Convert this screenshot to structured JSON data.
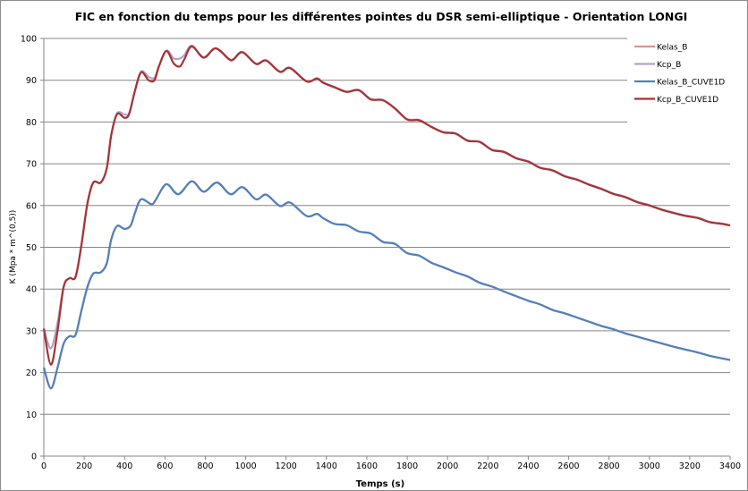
{
  "chart_data": {
    "type": "line",
    "title": "FIC en fonction du temps pour les différentes pointes du DSR semi-elliptique - Orientation LONGI",
    "xlabel": "Temps (s)",
    "ylabel": "K (Mpa * m^(0,5))",
    "xlim": [
      0,
      3400
    ],
    "ylim": [
      0,
      100
    ],
    "xticks": [
      0,
      200,
      400,
      600,
      800,
      1000,
      1200,
      1400,
      1600,
      1800,
      2000,
      2200,
      2400,
      2600,
      2800,
      3000,
      3200,
      3400
    ],
    "yticks": [
      0,
      10,
      20,
      30,
      40,
      50,
      60,
      70,
      80,
      90,
      100
    ],
    "grid": true,
    "legend": "top-right",
    "series": [
      {
        "name": "Kelas_B",
        "color": "#d99594",
        "points": [
          [
            0,
            21.2
          ],
          [
            35,
            16.2
          ],
          [
            68,
            21.2
          ],
          [
            98,
            26.9
          ],
          [
            127,
            28.7
          ],
          [
            157,
            29
          ],
          [
            186,
            34.8
          ],
          [
            216,
            40.5
          ],
          [
            245,
            43.7
          ],
          [
            282,
            44
          ],
          [
            312,
            46.2
          ],
          [
            334,
            51.9
          ],
          [
            363,
            55.1
          ],
          [
            400,
            54.4
          ],
          [
            430,
            55.2
          ],
          [
            452,
            58.3
          ],
          [
            482,
            61.5
          ],
          [
            533,
            60.3
          ],
          [
            555,
            61.4
          ],
          [
            607,
            65.1
          ],
          [
            666,
            62.7
          ],
          [
            733,
            65.8
          ],
          [
            792,
            63.3
          ],
          [
            858,
            65.5
          ],
          [
            925,
            62.7
          ],
          [
            984,
            64.4
          ],
          [
            1051,
            61.5
          ],
          [
            1102,
            62.6
          ],
          [
            1169,
            59.9
          ],
          [
            1220,
            60.7
          ],
          [
            1302,
            57.5
          ],
          [
            1353,
            58
          ],
          [
            1383,
            57
          ],
          [
            1440,
            55.6
          ],
          [
            1500,
            55.3
          ],
          [
            1560,
            53.8
          ],
          [
            1620,
            53.3
          ],
          [
            1680,
            51.3
          ],
          [
            1740,
            50.8
          ],
          [
            1800,
            48.6
          ],
          [
            1860,
            48
          ],
          [
            1920,
            46.3
          ],
          [
            1980,
            45.2
          ],
          [
            2040,
            44
          ],
          [
            2100,
            43
          ],
          [
            2160,
            41.5
          ],
          [
            2220,
            40.6
          ],
          [
            2280,
            39.4
          ],
          [
            2340,
            38.3
          ],
          [
            2400,
            37.2
          ],
          [
            2460,
            36.3
          ],
          [
            2520,
            35
          ],
          [
            2580,
            34.2
          ],
          [
            2640,
            33.2
          ],
          [
            2700,
            32.2
          ],
          [
            2760,
            31.2
          ],
          [
            2820,
            30.4
          ],
          [
            2880,
            29.4
          ],
          [
            2940,
            28.6
          ],
          [
            3000,
            27.8
          ],
          [
            3060,
            27
          ],
          [
            3120,
            26.2
          ],
          [
            3180,
            25.5
          ],
          [
            3240,
            24.8
          ],
          [
            3300,
            24
          ],
          [
            3360,
            23.4
          ],
          [
            3400,
            23
          ]
        ]
      },
      {
        "name": "Kcp_B",
        "color": "#b3a2c7",
        "points": [
          [
            0,
            30.5
          ],
          [
            35,
            25.8
          ],
          [
            68,
            32
          ],
          [
            98,
            40.5
          ],
          [
            127,
            42.6
          ],
          [
            157,
            42.9
          ],
          [
            186,
            50.5
          ],
          [
            216,
            60.5
          ],
          [
            245,
            65.5
          ],
          [
            282,
            65.5
          ],
          [
            312,
            69
          ],
          [
            334,
            76.9
          ],
          [
            363,
            82.1
          ],
          [
            400,
            81.8
          ],
          [
            423,
            82.2
          ],
          [
            452,
            87.6
          ],
          [
            482,
            92.1
          ],
          [
            519,
            90.8
          ],
          [
            548,
            90.6
          ],
          [
            570,
            93.3
          ],
          [
            607,
            97.1
          ],
          [
            644,
            95.2
          ],
          [
            674,
            95.2
          ],
          [
            696,
            96
          ],
          [
            733,
            98.3
          ],
          [
            792,
            95.5
          ],
          [
            851,
            97.7
          ],
          [
            918,
            95.1
          ],
          [
            940,
            95.1
          ],
          [
            984,
            96.8
          ],
          [
            1051,
            94
          ],
          [
            1102,
            94.8
          ],
          [
            1169,
            92.1
          ],
          [
            1220,
            93
          ],
          [
            1302,
            89.8
          ],
          [
            1353,
            90.5
          ],
          [
            1383,
            89.5
          ],
          [
            1440,
            88.4
          ],
          [
            1500,
            87.3
          ],
          [
            1560,
            87.7
          ],
          [
            1620,
            85.5
          ],
          [
            1680,
            85.3
          ],
          [
            1740,
            83.3
          ],
          [
            1800,
            80.7
          ],
          [
            1860,
            80.5
          ],
          [
            1920,
            78.9
          ],
          [
            1980,
            77.6
          ],
          [
            2040,
            77.3
          ],
          [
            2100,
            75.6
          ],
          [
            2160,
            75.3
          ],
          [
            2220,
            73.4
          ],
          [
            2280,
            72.9
          ],
          [
            2340,
            71.4
          ],
          [
            2400,
            70.6
          ],
          [
            2460,
            69.1
          ],
          [
            2520,
            68.5
          ],
          [
            2580,
            67.1
          ],
          [
            2640,
            66.3
          ],
          [
            2700,
            65.1
          ],
          [
            2760,
            64.1
          ],
          [
            2820,
            62.9
          ],
          [
            2880,
            62.1
          ],
          [
            2940,
            60.9
          ],
          [
            3000,
            60.1
          ],
          [
            3060,
            59.1
          ],
          [
            3120,
            58.3
          ],
          [
            3180,
            57.6
          ],
          [
            3240,
            57.1
          ],
          [
            3300,
            56.1
          ],
          [
            3360,
            55.7
          ],
          [
            3400,
            55.3
          ]
        ]
      },
      {
        "name": "Kelas_B_CUVE1D",
        "color": "#4f81bd",
        "points": [
          [
            0,
            21.2
          ],
          [
            35,
            16.2
          ],
          [
            68,
            21.2
          ],
          [
            98,
            26.9
          ],
          [
            127,
            28.7
          ],
          [
            157,
            29
          ],
          [
            186,
            34.8
          ],
          [
            216,
            40.5
          ],
          [
            245,
            43.7
          ],
          [
            282,
            44
          ],
          [
            312,
            46.2
          ],
          [
            334,
            51.9
          ],
          [
            363,
            55.1
          ],
          [
            400,
            54.4
          ],
          [
            430,
            55.2
          ],
          [
            452,
            58.3
          ],
          [
            482,
            61.5
          ],
          [
            533,
            60.3
          ],
          [
            555,
            61.4
          ],
          [
            607,
            65.1
          ],
          [
            666,
            62.7
          ],
          [
            733,
            65.8
          ],
          [
            792,
            63.3
          ],
          [
            858,
            65.5
          ],
          [
            925,
            62.7
          ],
          [
            984,
            64.4
          ],
          [
            1051,
            61.5
          ],
          [
            1102,
            62.6
          ],
          [
            1169,
            59.9
          ],
          [
            1220,
            60.7
          ],
          [
            1302,
            57.5
          ],
          [
            1353,
            58
          ],
          [
            1383,
            57
          ],
          [
            1440,
            55.6
          ],
          [
            1500,
            55.3
          ],
          [
            1560,
            53.8
          ],
          [
            1620,
            53.3
          ],
          [
            1680,
            51.3
          ],
          [
            1740,
            50.8
          ],
          [
            1800,
            48.6
          ],
          [
            1860,
            48
          ],
          [
            1920,
            46.3
          ],
          [
            1980,
            45.2
          ],
          [
            2040,
            44
          ],
          [
            2100,
            43
          ],
          [
            2160,
            41.5
          ],
          [
            2220,
            40.6
          ],
          [
            2280,
            39.4
          ],
          [
            2340,
            38.3
          ],
          [
            2400,
            37.2
          ],
          [
            2460,
            36.3
          ],
          [
            2520,
            35
          ],
          [
            2580,
            34.2
          ],
          [
            2640,
            33.2
          ],
          [
            2700,
            32.2
          ],
          [
            2760,
            31.2
          ],
          [
            2820,
            30.4
          ],
          [
            2880,
            29.4
          ],
          [
            2940,
            28.6
          ],
          [
            3000,
            27.8
          ],
          [
            3060,
            27
          ],
          [
            3120,
            26.2
          ],
          [
            3180,
            25.5
          ],
          [
            3240,
            24.8
          ],
          [
            3300,
            24
          ],
          [
            3360,
            23.4
          ],
          [
            3400,
            23
          ]
        ]
      },
      {
        "name": "Kcp_B_CUVE1D",
        "color": "#a83232",
        "points": [
          [
            0,
            30.5
          ],
          [
            35,
            21.9
          ],
          [
            68,
            30
          ],
          [
            98,
            40.5
          ],
          [
            127,
            42.6
          ],
          [
            157,
            42.9
          ],
          [
            186,
            50.5
          ],
          [
            216,
            60.5
          ],
          [
            245,
            65.5
          ],
          [
            282,
            65.5
          ],
          [
            312,
            69
          ],
          [
            334,
            76.9
          ],
          [
            363,
            81.9
          ],
          [
            400,
            81
          ],
          [
            423,
            82
          ],
          [
            452,
            87.6
          ],
          [
            482,
            91.9
          ],
          [
            519,
            90
          ],
          [
            548,
            90
          ],
          [
            570,
            93.3
          ],
          [
            607,
            97
          ],
          [
            644,
            94
          ],
          [
            674,
            93.3
          ],
          [
            696,
            95
          ],
          [
            733,
            98.1
          ],
          [
            792,
            95.4
          ],
          [
            851,
            97.6
          ],
          [
            918,
            95
          ],
          [
            940,
            95
          ],
          [
            984,
            96.7
          ],
          [
            1051,
            93.9
          ],
          [
            1102,
            94.7
          ],
          [
            1169,
            92
          ],
          [
            1220,
            92.9
          ],
          [
            1302,
            89.7
          ],
          [
            1353,
            90.4
          ],
          [
            1383,
            89.4
          ],
          [
            1440,
            88.3
          ],
          [
            1500,
            87.2
          ],
          [
            1560,
            87.6
          ],
          [
            1620,
            85.4
          ],
          [
            1680,
            85.2
          ],
          [
            1740,
            83.2
          ],
          [
            1800,
            80.6
          ],
          [
            1860,
            80.4
          ],
          [
            1920,
            78.8
          ],
          [
            1980,
            77.5
          ],
          [
            2040,
            77.2
          ],
          [
            2100,
            75.5
          ],
          [
            2160,
            75.2
          ],
          [
            2220,
            73.3
          ],
          [
            2280,
            72.8
          ],
          [
            2340,
            71.3
          ],
          [
            2400,
            70.5
          ],
          [
            2460,
            69
          ],
          [
            2520,
            68.4
          ],
          [
            2580,
            67
          ],
          [
            2640,
            66.2
          ],
          [
            2700,
            65
          ],
          [
            2760,
            64
          ],
          [
            2820,
            62.8
          ],
          [
            2880,
            62
          ],
          [
            2940,
            60.8
          ],
          [
            3000,
            60
          ],
          [
            3060,
            59
          ],
          [
            3120,
            58.2
          ],
          [
            3180,
            57.5
          ],
          [
            3240,
            57
          ],
          [
            3300,
            56
          ],
          [
            3360,
            55.6
          ],
          [
            3400,
            55.2
          ]
        ]
      }
    ]
  }
}
